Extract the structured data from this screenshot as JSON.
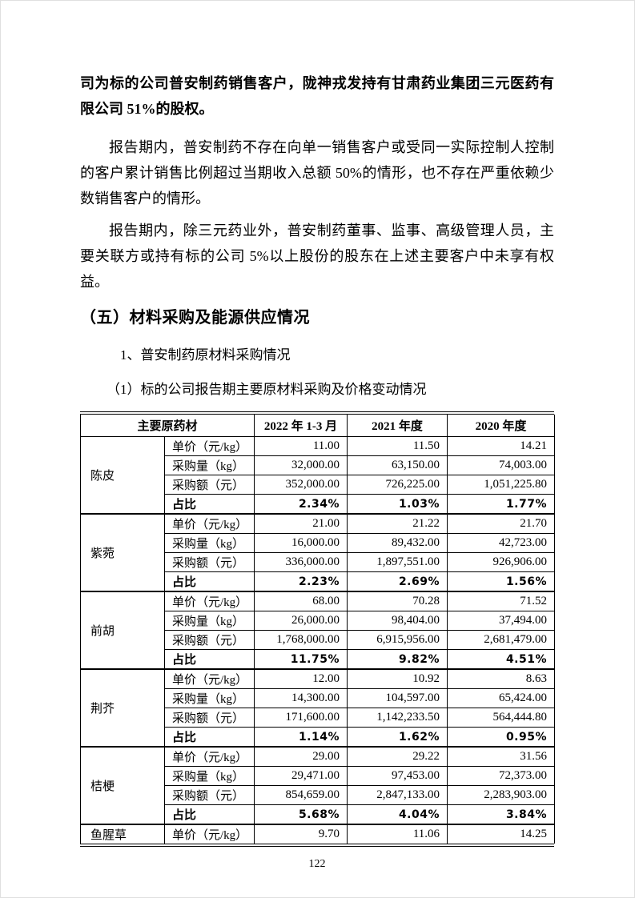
{
  "document": {
    "paragraphs": {
      "p1": "司为标的公司普安制药销售客户，陇神戎发持有甘肃药业集团三元医药有限公司 51%的股权。",
      "p2": "报告期内，普安制药不存在向单一销售客户或受同一实际控制人控制的客户累计销售比例超过当期收入总额 50%的情形，也不存在严重依赖少数销售客户的情形。",
      "p3": "报告期内，除三元药业外，普安制药董事、监事、高级管理人员，主要关联方或持有标的公司 5%以上股份的股东在上述主要客户中未享有权益。"
    },
    "section_heading": "（五）材料采购及能源供应情况",
    "sub_item_1": "1、普安制药原材料采购情况",
    "sub_item_2": "（1）标的公司报告期主要原材料采购及价格变动情况",
    "page_number": "122"
  },
  "table": {
    "headers": [
      "主要原药材",
      "2022 年 1-3 月",
      "2021 年度",
      "2020 年度"
    ],
    "row_labels": {
      "price": "单价（元/kg）",
      "qty": "采购量（kg）",
      "amount": "采购额（元）",
      "share": "占比"
    },
    "groups": [
      {
        "material": "陈皮",
        "price": [
          "11.00",
          "11.50",
          "14.21"
        ],
        "qty": [
          "32,000.00",
          "63,150.00",
          "74,003.00"
        ],
        "amount": [
          "352,000.00",
          "726,225.00",
          "1,051,225.80"
        ],
        "share": [
          "2.34%",
          "1.03%",
          "1.77%"
        ]
      },
      {
        "material": "紫菀",
        "price": [
          "21.00",
          "21.22",
          "21.70"
        ],
        "qty": [
          "16,000.00",
          "89,432.00",
          "42,723.00"
        ],
        "amount": [
          "336,000.00",
          "1,897,551.00",
          "926,906.00"
        ],
        "share": [
          "2.23%",
          "2.69%",
          "1.56%"
        ]
      },
      {
        "material": "前胡",
        "price": [
          "68.00",
          "70.28",
          "71.52"
        ],
        "qty": [
          "26,000.00",
          "98,404.00",
          "37,494.00"
        ],
        "amount": [
          "1,768,000.00",
          "6,915,956.00",
          "2,681,479.00"
        ],
        "share": [
          "11.75%",
          "9.82%",
          "4.51%"
        ]
      },
      {
        "material": "荆芥",
        "price": [
          "12.00",
          "10.92",
          "8.63"
        ],
        "qty": [
          "14,300.00",
          "104,597.00",
          "65,424.00"
        ],
        "amount": [
          "171,600.00",
          "1,142,233.50",
          "564,444.80"
        ],
        "share": [
          "1.14%",
          "1.62%",
          "0.95%"
        ]
      },
      {
        "material": "桔梗",
        "price": [
          "29.00",
          "29.22",
          "31.56"
        ],
        "qty": [
          "29,471.00",
          "97,453.00",
          "72,373.00"
        ],
        "amount": [
          "854,659.00",
          "2,847,133.00",
          "2,283,903.00"
        ],
        "share": [
          "5.68%",
          "4.04%",
          "3.84%"
        ]
      },
      {
        "material": "鱼腥草",
        "price": [
          "9.70",
          "11.06",
          "14.25"
        ]
      }
    ]
  }
}
